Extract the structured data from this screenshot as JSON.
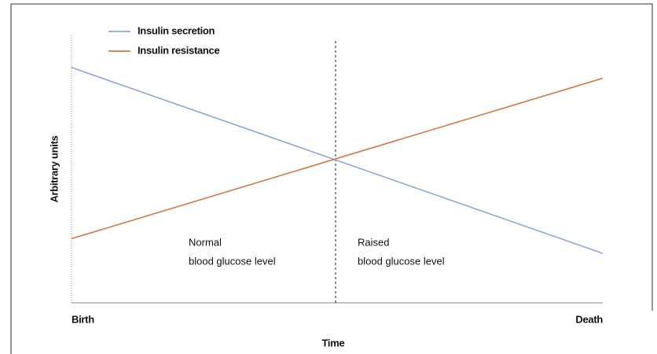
{
  "chart_data": {
    "type": "line",
    "xlabel": "Time",
    "ylabel": "Arbitrary units",
    "categories": [
      "Birth",
      "Death"
    ],
    "series": [
      {
        "name": "Insulin secretion",
        "color": "#8fa4d8",
        "values": [
          88,
          18.5
        ]
      },
      {
        "name": "Insulin resistance",
        "color": "#d0784a",
        "values": [
          24,
          84
        ]
      }
    ],
    "ylim": [
      0,
      100
    ],
    "legend": "upper left",
    "annotations": [
      {
        "lines": [
          "Normal",
          "blood glucose level"
        ]
      },
      {
        "lines": [
          "Raised",
          "blood glucose level"
        ]
      }
    ]
  }
}
